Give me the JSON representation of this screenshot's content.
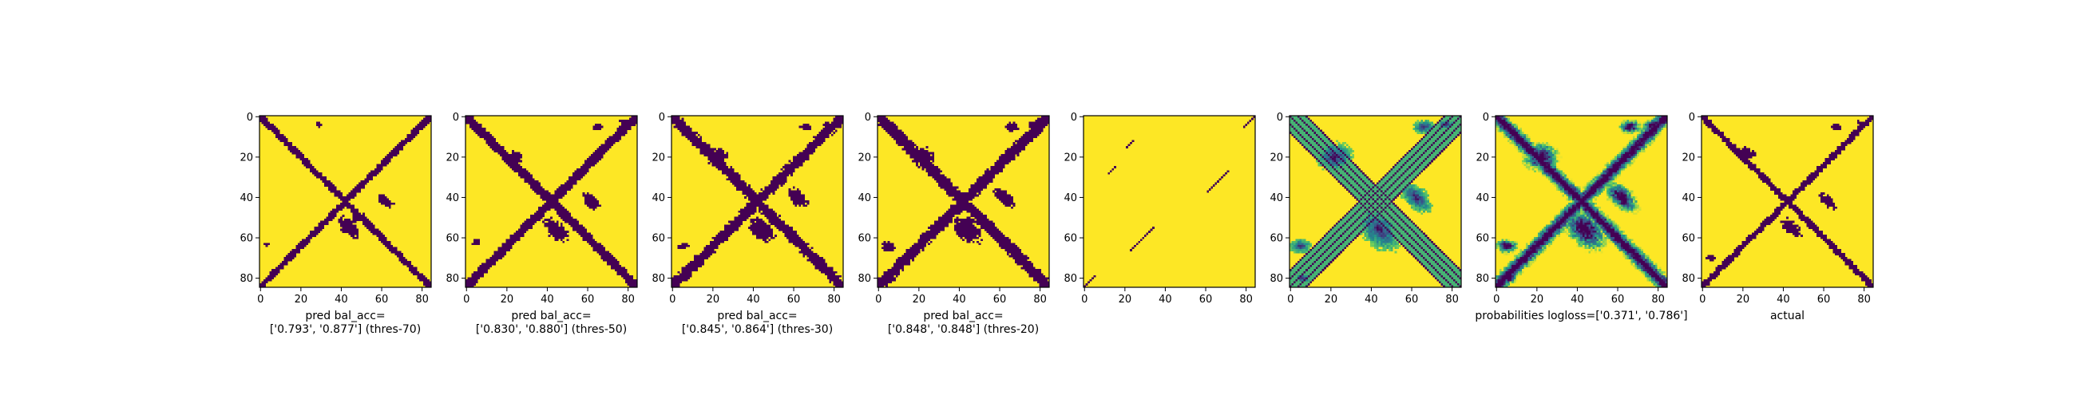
{
  "chart_data": [
    {
      "type": "heatmap",
      "variant": "binary",
      "title": "",
      "xlabel": [
        "pred bal_acc=",
        "['0.793', '0.877'] (thres-70)"
      ],
      "ylabel": "",
      "size": 85,
      "xticks": [
        0,
        20,
        40,
        60,
        80
      ],
      "yticks": [
        0,
        20,
        40,
        60,
        80
      ],
      "xlim": [
        -0.5,
        84.5
      ],
      "ylim": [
        84.5,
        -0.5
      ],
      "band_width": 3.2,
      "blobs": [
        [
          44,
          55,
          11,
          6,
          0.78
        ],
        [
          62,
          42,
          8,
          4,
          0.7
        ],
        [
          48,
          50,
          6,
          4,
          -0.78
        ],
        [
          29,
          4,
          3,
          2,
          0
        ],
        [
          3,
          63,
          3,
          2,
          0
        ],
        [
          80,
          3,
          3,
          2,
          0
        ]
      ],
      "bg_value": 1,
      "fg_value": 0
    },
    {
      "type": "heatmap",
      "variant": "binary",
      "title": "",
      "xlabel": [
        "pred bal_acc=",
        "['0.830', '0.880'] (thres-50)"
      ],
      "ylabel": "",
      "size": 85,
      "xticks": [
        0,
        20,
        40,
        60,
        80
      ],
      "yticks": [
        0,
        20,
        40,
        60,
        80
      ],
      "xlim": [
        -0.5,
        84.5
      ],
      "ylim": [
        84.5,
        -0.5
      ],
      "band_width": 4.5,
      "blobs": [
        [
          44,
          56,
          12,
          7,
          0.78
        ],
        [
          62,
          42,
          9,
          5,
          0.75
        ],
        [
          24,
          20,
          7,
          5,
          0
        ],
        [
          65,
          5,
          4,
          3,
          0
        ],
        [
          5,
          62,
          4,
          3,
          0
        ],
        [
          78,
          3,
          4,
          3,
          0
        ]
      ],
      "bg_value": 1,
      "fg_value": 0
    },
    {
      "type": "heatmap",
      "variant": "binary",
      "title": "",
      "xlabel": [
        "pred bal_acc=",
        "['0.845', '0.864'] (thres-30)"
      ],
      "ylabel": "",
      "size": 85,
      "xticks": [
        0,
        20,
        40,
        60,
        80
      ],
      "yticks": [
        0,
        20,
        40,
        60,
        80
      ],
      "xlim": [
        -0.5,
        84.5
      ],
      "ylim": [
        84.5,
        -0.5
      ],
      "band_width": 5.2,
      "blobs": [
        [
          44,
          56,
          13,
          8,
          0.78
        ],
        [
          62,
          40,
          10,
          6,
          0.75
        ],
        [
          22,
          20,
          9,
          7,
          0
        ],
        [
          66,
          5,
          5,
          3,
          0
        ],
        [
          5,
          64,
          5,
          3,
          0
        ],
        [
          77,
          4,
          4,
          3,
          0
        ],
        [
          6,
          80,
          4,
          3,
          0
        ]
      ],
      "bg_value": 1,
      "fg_value": 0
    },
    {
      "type": "heatmap",
      "variant": "binary",
      "title": "",
      "xlabel": [
        "pred bal_acc=",
        "['0.848', '0.848'] (thres-20)"
      ],
      "ylabel": "",
      "size": 85,
      "xticks": [
        0,
        20,
        40,
        60,
        80
      ],
      "yticks": [
        0,
        20,
        40,
        60,
        80
      ],
      "xlim": [
        -0.5,
        84.5
      ],
      "ylim": [
        84.5,
        -0.5
      ],
      "band_width": 5.6,
      "blobs": [
        [
          44,
          56,
          14,
          9,
          0.78
        ],
        [
          62,
          40,
          11,
          6,
          0.75
        ],
        [
          22,
          20,
          10,
          8,
          0
        ],
        [
          66,
          5,
          6,
          4,
          0
        ],
        [
          5,
          64,
          6,
          4,
          0
        ],
        [
          77,
          4,
          5,
          3,
          0
        ],
        [
          6,
          80,
          5,
          3,
          0
        ]
      ],
      "bg_value": 1,
      "fg_value": 0
    },
    {
      "type": "heatmap",
      "variant": "sparse",
      "title": "",
      "xlabel": [],
      "ylabel": "",
      "size": 85,
      "xticks": [
        0,
        20,
        40,
        60,
        80
      ],
      "yticks": [
        0,
        20,
        40,
        60,
        80
      ],
      "xlim": [
        -0.5,
        84.5
      ],
      "ylim": [
        84.5,
        -0.5
      ],
      "segments": [
        [
          0,
          84,
          5,
          79
        ],
        [
          12,
          24,
          15,
          21
        ],
        [
          25,
          15,
          28,
          12
        ],
        [
          27,
          71,
          37,
          61
        ],
        [
          55,
          34,
          66,
          23
        ],
        [
          79,
          5,
          84,
          0
        ]
      ],
      "bg_value": 1,
      "fg_value": 0
    },
    {
      "type": "heatmap",
      "variant": "prob_multi",
      "title": "",
      "xlabel": [],
      "ylabel": "",
      "size": 85,
      "xticks": [
        0,
        20,
        40,
        60,
        80
      ],
      "yticks": [
        0,
        20,
        40,
        60,
        80
      ],
      "xlim": [
        -0.5,
        84.5
      ],
      "ylim": [
        84.5,
        -0.5
      ],
      "blobs": [
        [
          44,
          56,
          14,
          9,
          0.78
        ],
        [
          62,
          40,
          11,
          6,
          0.75
        ],
        [
          22,
          20,
          10,
          8,
          0
        ],
        [
          66,
          5,
          6,
          4,
          0
        ],
        [
          5,
          64,
          6,
          4,
          0
        ],
        [
          77,
          4,
          5,
          3,
          0
        ],
        [
          6,
          80,
          5,
          3,
          0
        ]
      ],
      "bg_value": 1,
      "fg_value": 0
    },
    {
      "type": "heatmap",
      "variant": "prob",
      "title": "",
      "xlabel": [
        "probabilities logloss=['0.371', '0.786']"
      ],
      "ylabel": "",
      "size": 85,
      "xticks": [
        0,
        20,
        40,
        60,
        80
      ],
      "yticks": [
        0,
        20,
        40,
        60,
        80
      ],
      "xlim": [
        -0.5,
        84.5
      ],
      "ylim": [
        84.5,
        -0.5
      ],
      "band_width": 5.0,
      "blobs": [
        [
          44,
          56,
          14,
          9,
          0.78
        ],
        [
          62,
          40,
          11,
          6,
          0.75
        ],
        [
          22,
          20,
          10,
          8,
          0
        ],
        [
          66,
          5,
          6,
          4,
          0
        ],
        [
          5,
          64,
          6,
          4,
          0
        ],
        [
          77,
          4,
          5,
          3,
          0
        ],
        [
          6,
          80,
          5,
          3,
          0
        ]
      ],
      "bg_value": 1,
      "fg_value": 0
    },
    {
      "type": "heatmap",
      "variant": "binary",
      "title": "",
      "xlabel": [
        "actual"
      ],
      "ylabel": "",
      "size": 85,
      "xticks": [
        0,
        20,
        40,
        60,
        80
      ],
      "yticks": [
        0,
        20,
        40,
        60,
        80
      ],
      "xlim": [
        -0.5,
        84.5
      ],
      "ylim": [
        84.5,
        -0.5
      ],
      "band_width": 3.0,
      "blobs": [
        [
          44,
          55,
          10,
          5,
          0.78
        ],
        [
          62,
          42,
          9,
          4,
          0.72
        ],
        [
          22,
          18,
          7,
          5,
          0.3
        ],
        [
          66,
          5,
          4,
          3,
          0
        ],
        [
          4,
          70,
          4,
          3,
          0
        ],
        [
          78,
          3,
          3,
          2,
          0
        ]
      ],
      "bg_value": 1,
      "fg_value": 0
    }
  ],
  "colormap": {
    "name": "viridis",
    "low": "#440154",
    "mid": "#21918c",
    "high": "#fde725"
  }
}
